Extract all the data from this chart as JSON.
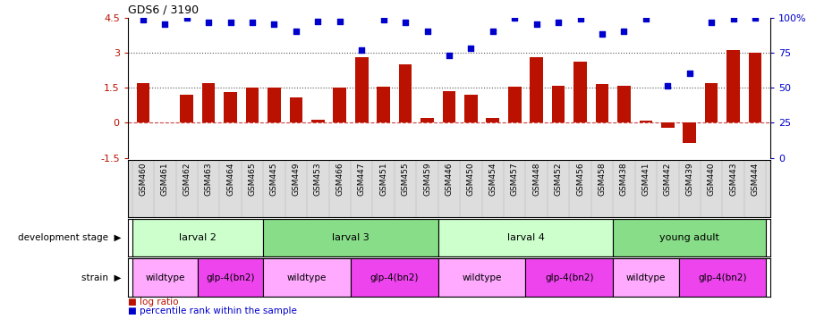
{
  "title": "GDS6 / 3190",
  "samples": [
    "GSM460",
    "GSM461",
    "GSM462",
    "GSM463",
    "GSM464",
    "GSM465",
    "GSM445",
    "GSM449",
    "GSM453",
    "GSM466",
    "GSM447",
    "GSM451",
    "GSM455",
    "GSM459",
    "GSM446",
    "GSM450",
    "GSM454",
    "GSM457",
    "GSM448",
    "GSM452",
    "GSM456",
    "GSM458",
    "GSM438",
    "GSM441",
    "GSM442",
    "GSM439",
    "GSM440",
    "GSM443",
    "GSM444"
  ],
  "log_ratio": [
    1.7,
    0.0,
    1.2,
    1.7,
    1.3,
    1.5,
    1.5,
    1.1,
    0.15,
    1.5,
    2.8,
    1.55,
    2.5,
    0.2,
    1.35,
    1.2,
    0.2,
    1.55,
    2.8,
    1.6,
    2.6,
    1.65,
    1.6,
    0.1,
    -0.2,
    -0.85,
    1.7,
    3.1,
    3.0
  ],
  "percentile_left": [
    4.4,
    4.2,
    4.5,
    4.3,
    4.3,
    4.3,
    4.2,
    3.9,
    4.35,
    4.35,
    3.1,
    4.4,
    4.3,
    3.9,
    2.9,
    3.2,
    3.9,
    4.5,
    4.2,
    4.3,
    4.45,
    3.8,
    3.9,
    4.45,
    1.6,
    2.1,
    4.3,
    4.45,
    4.5
  ],
  "dev_stages": [
    {
      "label": "larval 2",
      "start": 0,
      "end": 6,
      "color": "#ccffcc"
    },
    {
      "label": "larval 3",
      "start": 6,
      "end": 14,
      "color": "#88dd88"
    },
    {
      "label": "larval 4",
      "start": 14,
      "end": 22,
      "color": "#ccffcc"
    },
    {
      "label": "young adult",
      "start": 22,
      "end": 29,
      "color": "#88dd88"
    }
  ],
  "strains": [
    {
      "label": "wildtype",
      "start": 0,
      "end": 3,
      "color": "#ffaaff"
    },
    {
      "label": "glp-4(bn2)",
      "start": 3,
      "end": 6,
      "color": "#ee44ee"
    },
    {
      "label": "wildtype",
      "start": 6,
      "end": 10,
      "color": "#ffaaff"
    },
    {
      "label": "glp-4(bn2)",
      "start": 10,
      "end": 14,
      "color": "#ee44ee"
    },
    {
      "label": "wildtype",
      "start": 14,
      "end": 18,
      "color": "#ffaaff"
    },
    {
      "label": "glp-4(bn2)",
      "start": 18,
      "end": 22,
      "color": "#ee44ee"
    },
    {
      "label": "wildtype",
      "start": 22,
      "end": 25,
      "color": "#ffaaff"
    },
    {
      "label": "glp-4(bn2)",
      "start": 25,
      "end": 29,
      "color": "#ee44ee"
    }
  ],
  "ylim": [
    -1.5,
    4.5
  ],
  "bar_color": "#bb1100",
  "scatter_color": "#0000cc",
  "left_yticks": [
    -1.5,
    0,
    1.5,
    3.0,
    4.5
  ],
  "left_yticklabels": [
    "-1.5",
    "0",
    "1.5",
    "3",
    "4.5"
  ],
  "right_yticks": [
    0,
    25,
    50,
    75,
    100
  ],
  "right_yticklabels": [
    "0",
    "25",
    "50",
    "75",
    "100%"
  ]
}
